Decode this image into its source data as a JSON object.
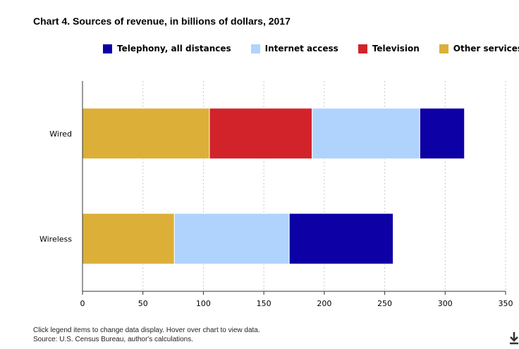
{
  "chart_data": {
    "type": "bar",
    "orientation": "horizontal",
    "stacked": true,
    "title": "Chart 4. Sources of revenue, in billions of dollars, 2017",
    "categories": [
      "Wired",
      "Wireless"
    ],
    "series": [
      {
        "name": "Other services",
        "values": [
          105,
          76
        ],
        "color": "#dcaf38"
      },
      {
        "name": "Television",
        "values": [
          85,
          0
        ],
        "color": "#d2232a"
      },
      {
        "name": "Internet access",
        "values": [
          89,
          95
        ],
        "color": "#b0d3fe"
      },
      {
        "name": "Telephony, all distances",
        "values": [
          37,
          86
        ],
        "color": "#0d00a4"
      }
    ],
    "legend_order": [
      "Telephony, all distances",
      "Internet access",
      "Television",
      "Other services"
    ],
    "xlim": [
      0,
      350
    ],
    "xticks": [
      "0",
      "50",
      "100",
      "150",
      "200",
      "250",
      "300",
      "350"
    ],
    "grid": true,
    "legend_position": "top"
  },
  "notes": {
    "interaction": "Click legend items to change data display. Hover over chart to view data.",
    "source": "Source: U.S. Census Bureau, author's calculations."
  },
  "icons": {
    "download": "download-icon"
  }
}
